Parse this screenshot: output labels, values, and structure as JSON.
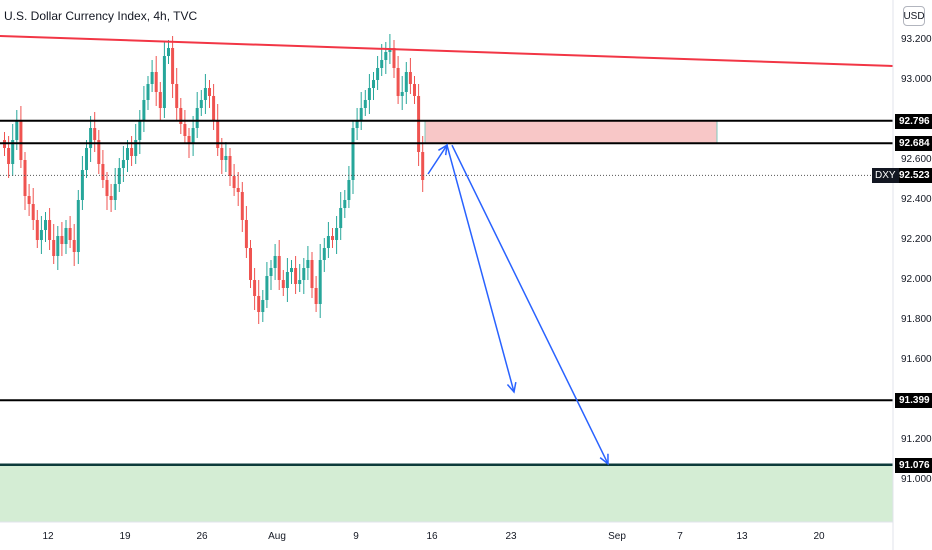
{
  "header": {
    "title": "U.S. Dollar Currency Index, 4h, TVC",
    "currency_button": "USD"
  },
  "price_axis": {
    "ticks": [
      "93.200",
      "93.000",
      "92.600",
      "92.400",
      "92.200",
      "92.000",
      "91.800",
      "91.600",
      "91.200",
      "91.000"
    ],
    "tick_values": [
      93.2,
      93.0,
      92.6,
      92.4,
      92.2,
      92.0,
      91.8,
      91.6,
      91.2,
      91.0
    ],
    "tags": [
      {
        "label": "92.796",
        "value": 92.796
      },
      {
        "label": "92.684",
        "value": 92.684
      },
      {
        "label": "92.523",
        "value": 92.523
      },
      {
        "label": "91.399",
        "value": 91.399
      },
      {
        "label": "91.076",
        "value": 91.076
      }
    ],
    "symbol_tag": "DXY"
  },
  "time_axis": {
    "ticks": [
      "12",
      "19",
      "26",
      "Aug",
      "9",
      "16",
      "23",
      "Sep",
      "7",
      "13",
      "20"
    ]
  },
  "chart_data": {
    "type": "candlestick",
    "title": "U.S. Dollar Currency Index, 4h, TVC",
    "ylim": [
      90.8,
      93.35
    ],
    "colors": {
      "up": "#26a69a",
      "down": "#ef5350",
      "trendline": "#f23645",
      "arrow": "#2962ff",
      "level": "#000000",
      "supply_zone": "#f8c7c7",
      "demand_zone": "#d4edd4"
    },
    "last_price": 92.523,
    "horizontal_levels": [
      92.796,
      92.684,
      91.399,
      91.076
    ],
    "supply_zone": {
      "from": 92.684,
      "to": 92.796
    },
    "demand_zone": {
      "from": 90.8,
      "to": 91.076
    },
    "trendline": {
      "start": 93.22,
      "end": 93.07
    },
    "projection": [
      {
        "path": [
          92.53,
          92.684,
          91.42
        ]
      },
      {
        "path": [
          92.684,
          91.076
        ]
      }
    ],
    "closes": [
      92.66,
      92.58,
      92.7,
      92.8,
      92.6,
      92.42,
      92.38,
      92.3,
      92.2,
      92.25,
      92.3,
      92.2,
      92.12,
      92.22,
      92.18,
      92.26,
      92.2,
      92.14,
      92.4,
      92.55,
      92.66,
      92.76,
      92.7,
      92.58,
      92.5,
      92.42,
      92.4,
      92.48,
      92.56,
      92.6,
      92.66,
      92.62,
      92.7,
      92.8,
      92.9,
      92.98,
      93.04,
      92.94,
      92.86,
      93.12,
      93.16,
      92.98,
      92.86,
      92.78,
      92.72,
      92.68,
      92.76,
      92.86,
      92.9,
      92.96,
      92.92,
      92.8,
      92.66,
      92.6,
      92.62,
      92.52,
      92.46,
      92.44,
      92.3,
      92.16,
      92.0,
      91.92,
      91.84,
      91.9,
      92.02,
      92.06,
      92.12,
      92.0,
      91.96,
      92.04,
      92.06,
      91.98,
      92.0,
      92.06,
      92.1,
      91.96,
      91.88,
      92.1,
      92.16,
      92.22,
      92.2,
      92.26,
      92.36,
      92.4,
      92.5,
      92.76,
      92.8,
      92.86,
      92.9,
      92.96,
      93.0,
      93.06,
      93.1,
      93.14,
      93.16,
      93.06,
      92.92,
      92.94,
      93.04,
      92.98,
      92.92,
      92.64,
      92.5
    ]
  }
}
